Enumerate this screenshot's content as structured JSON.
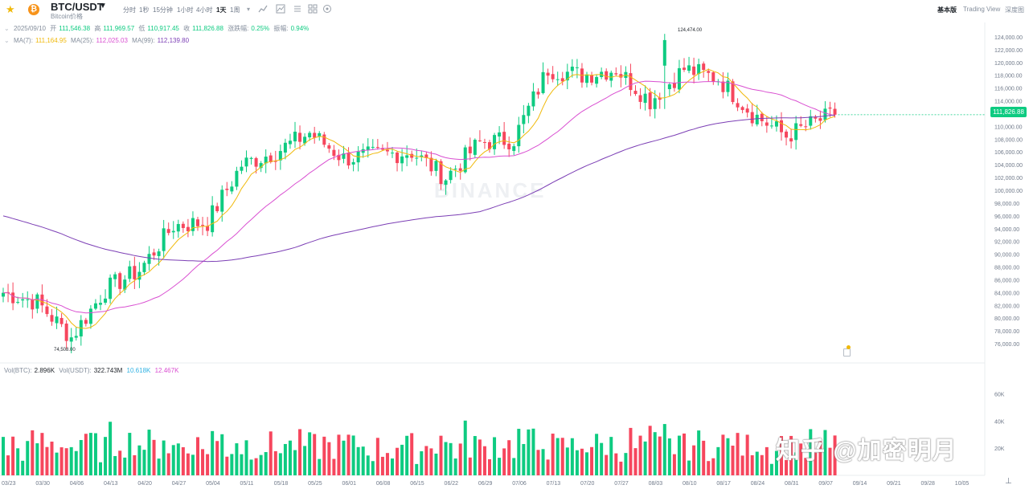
{
  "header": {
    "pair": "BTC/USDT",
    "caret": "▼",
    "subtitle": "Bitcoin价格",
    "star_icon": "★",
    "coin_icon": "₿",
    "timeframes": [
      "分时",
      "1秒",
      "15分钟",
      "1小时",
      "4小时",
      "1天",
      "1周"
    ],
    "active_timeframe": "1天",
    "tool_icons": [
      "chevron-down-icon",
      "indicator-icon",
      "drawing-icon",
      "settings-icon",
      "grid-icon",
      "reset-icon"
    ],
    "view_tabs": [
      "基本版",
      "Trading View",
      "深度图"
    ],
    "active_view": "基本版"
  },
  "ohlc": {
    "date": "2025/09/10",
    "open_label": "开",
    "open": "111,546.38",
    "high_label": "高",
    "high": "111,969.57",
    "low_label": "低",
    "low": "110,917.45",
    "close_label": "收",
    "close": "111,826.88",
    "change_label": "涨跌幅:",
    "change": "0.25%",
    "amp_label": "振幅:",
    "amp": "0.94%"
  },
  "ma": {
    "ma7_label": "MA(7):",
    "ma7": "111,164.95",
    "ma25_label": "MA(25):",
    "ma25": "112,025.03",
    "ma99_label": "MA(99):",
    "ma99": "112,139.80"
  },
  "volume": {
    "btc_label": "Vol(BTC):",
    "btc": "2.896K",
    "usdt_label": "Vol(USDT):",
    "usdt": "322.743M",
    "ma5": "10.618K",
    "ma10": "12.467K"
  },
  "current_price": "111,826.88",
  "peak_label": "124,474.00",
  "trough_label": "74,508.00",
  "binance_watermark": "BINANCE",
  "overlay_watermark": "知乎 @加密明月",
  "colors": {
    "up": "#0ecb81",
    "down": "#f6465d",
    "ma7": "#f0b90b",
    "ma25": "#d94fd1",
    "ma99": "#7c3fb5"
  },
  "chart_data": {
    "type": "candlestick",
    "price_axis": [
      "124,000.00",
      "122,000.00",
      "120,000.00",
      "118,000.00",
      "116,000.00",
      "114,000.00",
      "112,000.00",
      "110,000.00",
      "108,000.00",
      "106,000.00",
      "104,000.00",
      "102,000.00",
      "100,000.00",
      "98,000.00",
      "96,000.00",
      "94,000.00",
      "92,000.00",
      "90,000.00",
      "88,000.00",
      "86,000.00",
      "84,000.00",
      "82,000.00",
      "80,000.00",
      "78,000.00",
      "76,000.00"
    ],
    "volume_axis": [
      "60K",
      "40K",
      "20K"
    ],
    "dates": [
      "03/23",
      "03/30",
      "04/06",
      "04/13",
      "04/20",
      "04/27",
      "05/04",
      "05/11",
      "05/18",
      "05/25",
      "06/01",
      "06/08",
      "06/15",
      "06/22",
      "06/29",
      "07/06",
      "07/13",
      "07/20",
      "07/27",
      "08/03",
      "08/10",
      "08/17",
      "08/24",
      "08/31",
      "09/07",
      "09/14",
      "09/21",
      "09/28",
      "10/05"
    ],
    "ylim": [
      74000,
      125500
    ],
    "key_closes": [
      {
        "date": "03/23",
        "close": 84000
      },
      {
        "date": "03/30",
        "close": 82500
      },
      {
        "date": "04/06",
        "close": 77000
      },
      {
        "date": "04/13",
        "close": 84500
      },
      {
        "date": "04/20",
        "close": 87500
      },
      {
        "date": "04/27",
        "close": 94500
      },
      {
        "date": "05/04",
        "close": 95000
      },
      {
        "date": "05/11",
        "close": 104000
      },
      {
        "date": "05/18",
        "close": 106000
      },
      {
        "date": "05/25",
        "close": 109000
      },
      {
        "date": "06/01",
        "close": 105000
      },
      {
        "date": "06/08",
        "close": 105500
      },
      {
        "date": "06/15",
        "close": 106000
      },
      {
        "date": "06/22",
        "close": 102000
      },
      {
        "date": "06/29",
        "close": 107500
      },
      {
        "date": "07/06",
        "close": 108000
      },
      {
        "date": "07/13",
        "close": 119000
      },
      {
        "date": "07/20",
        "close": 118000
      },
      {
        "date": "07/27",
        "close": 119000
      },
      {
        "date": "08/03",
        "close": 114000
      },
      {
        "date": "08/10",
        "close": 119000
      },
      {
        "date": "08/17",
        "close": 117500
      },
      {
        "date": "08/24",
        "close": 112000
      },
      {
        "date": "08/31",
        "close": 108500
      },
      {
        "date": "09/07",
        "close": 111000
      },
      {
        "date": "09/10",
        "close": 111826.88
      }
    ]
  }
}
